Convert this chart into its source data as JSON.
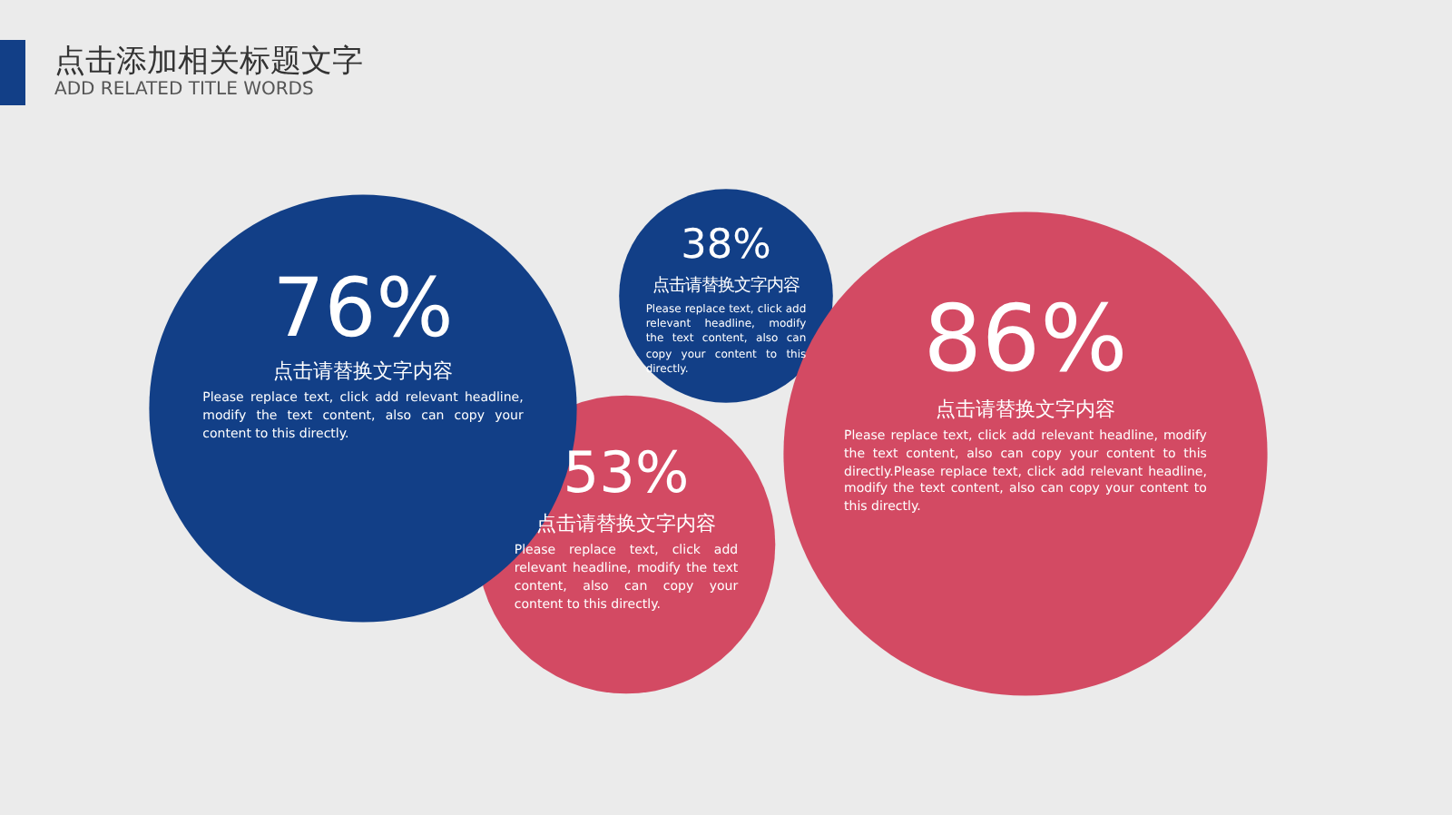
{
  "chart_data": {
    "type": "other",
    "title": "点击添加相关标题文字",
    "subtitle": "ADD RELATED TITLE WORDS",
    "categories": [
      "点击请替换文字内容",
      "点击请替换文字内容",
      "点击请替换文字内容",
      "点击请替换文字内容"
    ],
    "values": [
      76,
      38,
      53,
      86
    ],
    "value_labels": [
      "76%",
      "38%",
      "53%",
      "86%"
    ],
    "colors": [
      "#123f87",
      "#123f87",
      "#d34a63",
      "#d34a63"
    ],
    "annotations": [
      "Please replace text, click add relevant headline, modify the text content, also can copy your content to this directly.",
      "Please replace text, click add relevant headline, modify the text content, also can copy your content to this directly.",
      "Please replace text, click add relevant headline, modify the text content, also can copy your content to this directly.",
      "Please replace text, click add relevant headline, modify the text content, also can copy your content to this directly.Please replace text, click add relevant headline, modify the text content, also can copy your content to this directly."
    ],
    "legend": false
  }
}
